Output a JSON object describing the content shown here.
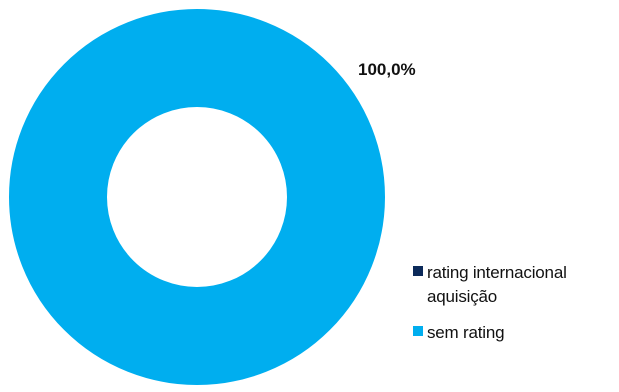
{
  "chart_data": {
    "type": "pie",
    "donut": true,
    "categories": [
      "rating internacional aquisição",
      "sem rating"
    ],
    "values": [
      0.0,
      100.0
    ],
    "colors": [
      "#0b2a5a",
      "#00aeef"
    ],
    "data_labels": [
      "100,0%"
    ],
    "legend_position": "right-bottom",
    "legend": [
      {
        "label": "rating internacional aquisição",
        "color": "#0b2a5a"
      },
      {
        "label": "sem rating",
        "color": "#00aeef"
      }
    ]
  }
}
